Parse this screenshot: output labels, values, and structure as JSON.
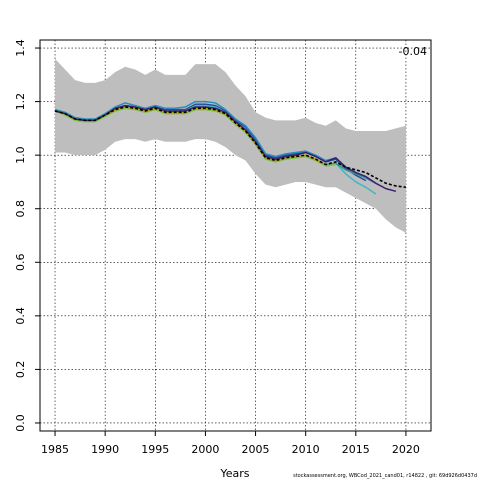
{
  "chart_data": {
    "type": "line",
    "title": "",
    "xlabel": "Years",
    "ylabel": "",
    "xlim": [
      1983.5,
      2022.5
    ],
    "ylim": [
      -0.03,
      1.43
    ],
    "x_ticks": [
      1985,
      1990,
      1995,
      2000,
      2005,
      2010,
      2015,
      2020
    ],
    "y_ticks": [
      0.0,
      0.2,
      0.4,
      0.6,
      0.8,
      1.0,
      1.2,
      1.4
    ],
    "x_tick_labels": [
      "1985",
      "1990",
      "1995",
      "2000",
      "2005",
      "2010",
      "2015",
      "2020"
    ],
    "y_tick_labels": [
      "0.0",
      "0.2",
      "0.4",
      "0.6",
      "0.8",
      "1.0",
      "1.2",
      "1.4"
    ],
    "grid": true,
    "annotation": "-0.04",
    "footer": "stockassessment.org, WBCod_2021_cand01, r14822 , git: 69d926d0437d",
    "band": {
      "color": "#bebebe",
      "x": [
        1985,
        1986,
        1987,
        1988,
        1989,
        1990,
        1991,
        1992,
        1993,
        1994,
        1995,
        1996,
        1997,
        1998,
        1999,
        2000,
        2001,
        2002,
        2003,
        2004,
        2005,
        2006,
        2007,
        2008,
        2009,
        2010,
        2011,
        2012,
        2013,
        2014,
        2015,
        2016,
        2017,
        2018,
        2019,
        2020
      ],
      "upper": [
        1.36,
        1.32,
        1.28,
        1.27,
        1.27,
        1.28,
        1.31,
        1.33,
        1.32,
        1.3,
        1.32,
        1.3,
        1.3,
        1.3,
        1.34,
        1.34,
        1.34,
        1.31,
        1.26,
        1.22,
        1.16,
        1.14,
        1.13,
        1.13,
        1.13,
        1.14,
        1.12,
        1.11,
        1.13,
        1.1,
        1.09,
        1.09,
        1.09,
        1.09,
        1.1,
        1.11
      ],
      "lower": [
        1.01,
        1.01,
        1.0,
        1.0,
        1.0,
        1.02,
        1.05,
        1.06,
        1.06,
        1.05,
        1.06,
        1.05,
        1.05,
        1.05,
        1.06,
        1.06,
        1.05,
        1.03,
        1.0,
        0.98,
        0.93,
        0.89,
        0.88,
        0.89,
        0.9,
        0.9,
        0.89,
        0.88,
        0.88,
        0.86,
        0.84,
        0.82,
        0.8,
        0.76,
        0.73,
        0.71
      ]
    },
    "series": [
      {
        "color": "#1f4e9e",
        "dash": false,
        "x": [
          1985,
          1986,
          1987,
          1988,
          1989,
          1990,
          1991,
          1992,
          1993,
          1994,
          1995,
          1996,
          1997,
          1998,
          1999,
          2000,
          2001,
          2002,
          2003,
          2004,
          2005,
          2006,
          2007,
          2008,
          2009,
          2010,
          2011,
          2012,
          2013,
          2014,
          2015,
          2016
        ],
        "values": [
          1.165,
          1.155,
          1.135,
          1.13,
          1.13,
          1.15,
          1.175,
          1.185,
          1.18,
          1.17,
          1.18,
          1.17,
          1.17,
          1.17,
          1.19,
          1.19,
          1.185,
          1.165,
          1.13,
          1.105,
          1.06,
          1.0,
          0.99,
          1.0,
          1.005,
          1.01,
          0.995,
          0.975,
          0.985,
          0.95,
          0.925,
          0.905
        ]
      },
      {
        "color": "#2b8cbe",
        "dash": false,
        "x": [
          1985,
          1986,
          1987,
          1988,
          1989,
          1990,
          1991,
          1992,
          1993,
          1994,
          1995,
          1996,
          1997,
          1998,
          1999,
          2000,
          2001,
          2002,
          2003,
          2004,
          2005,
          2006,
          2007,
          2008,
          2009,
          2010,
          2011,
          2012,
          2013,
          2014,
          2015,
          2016,
          2017
        ],
        "values": [
          1.17,
          1.16,
          1.14,
          1.135,
          1.135,
          1.155,
          1.18,
          1.195,
          1.185,
          1.175,
          1.185,
          1.175,
          1.175,
          1.18,
          1.2,
          1.2,
          1.195,
          1.17,
          1.135,
          1.11,
          1.065,
          1.005,
          0.995,
          1.005,
          1.01,
          1.015,
          1.0,
          0.98,
          0.99,
          0.955,
          0.935,
          0.915,
          0.895
        ]
      },
      {
        "color": "#41b6c4",
        "dash": false,
        "x": [
          1985,
          1986,
          1987,
          1988,
          1989,
          1990,
          1991,
          1992,
          1993,
          1994,
          1995,
          1996,
          1997,
          1998,
          1999,
          2000,
          2001,
          2002,
          2003,
          2004,
          2005,
          2006,
          2007,
          2008,
          2009,
          2010,
          2011,
          2012,
          2013,
          2014,
          2015,
          2016,
          2017
        ],
        "values": [
          1.165,
          1.155,
          1.135,
          1.13,
          1.13,
          1.15,
          1.175,
          1.185,
          1.18,
          1.17,
          1.18,
          1.165,
          1.165,
          1.165,
          1.185,
          1.185,
          1.18,
          1.16,
          1.125,
          1.095,
          1.05,
          0.99,
          0.98,
          0.99,
          0.995,
          1.0,
          0.985,
          0.965,
          0.97,
          0.93,
          0.9,
          0.88,
          0.855
        ]
      },
      {
        "color": "#35978f",
        "dash": false,
        "x": [
          1985,
          1986,
          1987,
          1988,
          1989,
          1990,
          1991,
          1992,
          1993,
          1994,
          1995,
          1996,
          1997,
          1998,
          1999,
          2000,
          2001,
          2002,
          2003,
          2004,
          2005,
          2006,
          2007,
          2008,
          2009,
          2010,
          2011,
          2012,
          2013,
          2014,
          2015,
          2016
        ],
        "values": [
          1.165,
          1.155,
          1.135,
          1.13,
          1.13,
          1.15,
          1.17,
          1.18,
          1.175,
          1.165,
          1.175,
          1.16,
          1.16,
          1.16,
          1.175,
          1.175,
          1.17,
          1.155,
          1.12,
          1.09,
          1.045,
          0.99,
          0.98,
          0.99,
          0.995,
          1.0,
          0.985,
          0.965,
          0.97,
          0.945,
          0.93,
          0.915
        ]
      },
      {
        "color": "#7fbf3f",
        "dash": false,
        "x": [
          1985,
          1986,
          1987,
          1988,
          1989,
          1990,
          1991,
          1992,
          1993,
          1994,
          1995,
          1996,
          1997,
          1998,
          1999,
          2000,
          2001,
          2002,
          2003,
          2004,
          2005,
          2006,
          2007,
          2008,
          2009,
          2010,
          2011,
          2012,
          2013
        ],
        "values": [
          1.165,
          1.15,
          1.13,
          1.125,
          1.125,
          1.145,
          1.165,
          1.175,
          1.17,
          1.16,
          1.17,
          1.155,
          1.155,
          1.155,
          1.17,
          1.17,
          1.165,
          1.15,
          1.115,
          1.085,
          1.04,
          0.985,
          0.975,
          0.985,
          0.99,
          0.995,
          0.98,
          0.96,
          0.965
        ]
      },
      {
        "color": "#c8a000",
        "dash": false,
        "x": [
          1985,
          1986,
          1987,
          1988,
          1989,
          1990,
          1991,
          1992,
          1993,
          1994,
          1995,
          1996,
          1997,
          1998,
          1999,
          2000,
          2001,
          2002,
          2003,
          2004,
          2005,
          2006,
          2007,
          2008,
          2009,
          2010,
          2011,
          2012
        ],
        "values": [
          1.165,
          1.155,
          1.135,
          1.13,
          1.13,
          1.15,
          1.17,
          1.18,
          1.175,
          1.165,
          1.175,
          1.16,
          1.16,
          1.16,
          1.175,
          1.175,
          1.17,
          1.155,
          1.12,
          1.09,
          1.045,
          0.99,
          0.98,
          0.99,
          0.995,
          1.0,
          0.985,
          0.965
        ]
      },
      {
        "color": "#3b1f6e",
        "dash": false,
        "x": [
          1985,
          1986,
          1987,
          1988,
          1989,
          1990,
          1991,
          1992,
          1993,
          1994,
          1995,
          1996,
          1997,
          1998,
          1999,
          2000,
          2001,
          2002,
          2003,
          2004,
          2005,
          2006,
          2007,
          2008,
          2009,
          2010,
          2011,
          2012,
          2013,
          2014,
          2015,
          2016,
          2017,
          2018,
          2019
        ],
        "values": [
          1.165,
          1.155,
          1.135,
          1.13,
          1.13,
          1.15,
          1.175,
          1.185,
          1.18,
          1.17,
          1.18,
          1.165,
          1.165,
          1.165,
          1.18,
          1.18,
          1.175,
          1.16,
          1.125,
          1.095,
          1.05,
          0.995,
          0.985,
          0.995,
          1.0,
          1.01,
          0.995,
          0.975,
          0.99,
          0.955,
          0.935,
          0.92,
          0.895,
          0.875,
          0.865
        ]
      },
      {
        "color": "#000000",
        "dash": true,
        "x": [
          1985,
          1986,
          1987,
          1988,
          1989,
          1990,
          1991,
          1992,
          1993,
          1994,
          1995,
          1996,
          1997,
          1998,
          1999,
          2000,
          2001,
          2002,
          2003,
          2004,
          2005,
          2006,
          2007,
          2008,
          2009,
          2010,
          2011,
          2012,
          2013,
          2014,
          2015,
          2016,
          2017,
          2018,
          2019,
          2020
        ],
        "values": [
          1.165,
          1.155,
          1.135,
          1.13,
          1.13,
          1.15,
          1.17,
          1.18,
          1.175,
          1.165,
          1.175,
          1.16,
          1.16,
          1.16,
          1.175,
          1.175,
          1.17,
          1.155,
          1.12,
          1.09,
          1.045,
          0.99,
          0.98,
          0.99,
          0.995,
          1.0,
          0.985,
          0.965,
          0.975,
          0.955,
          0.945,
          0.935,
          0.915,
          0.895,
          0.885,
          0.88
        ]
      }
    ]
  }
}
